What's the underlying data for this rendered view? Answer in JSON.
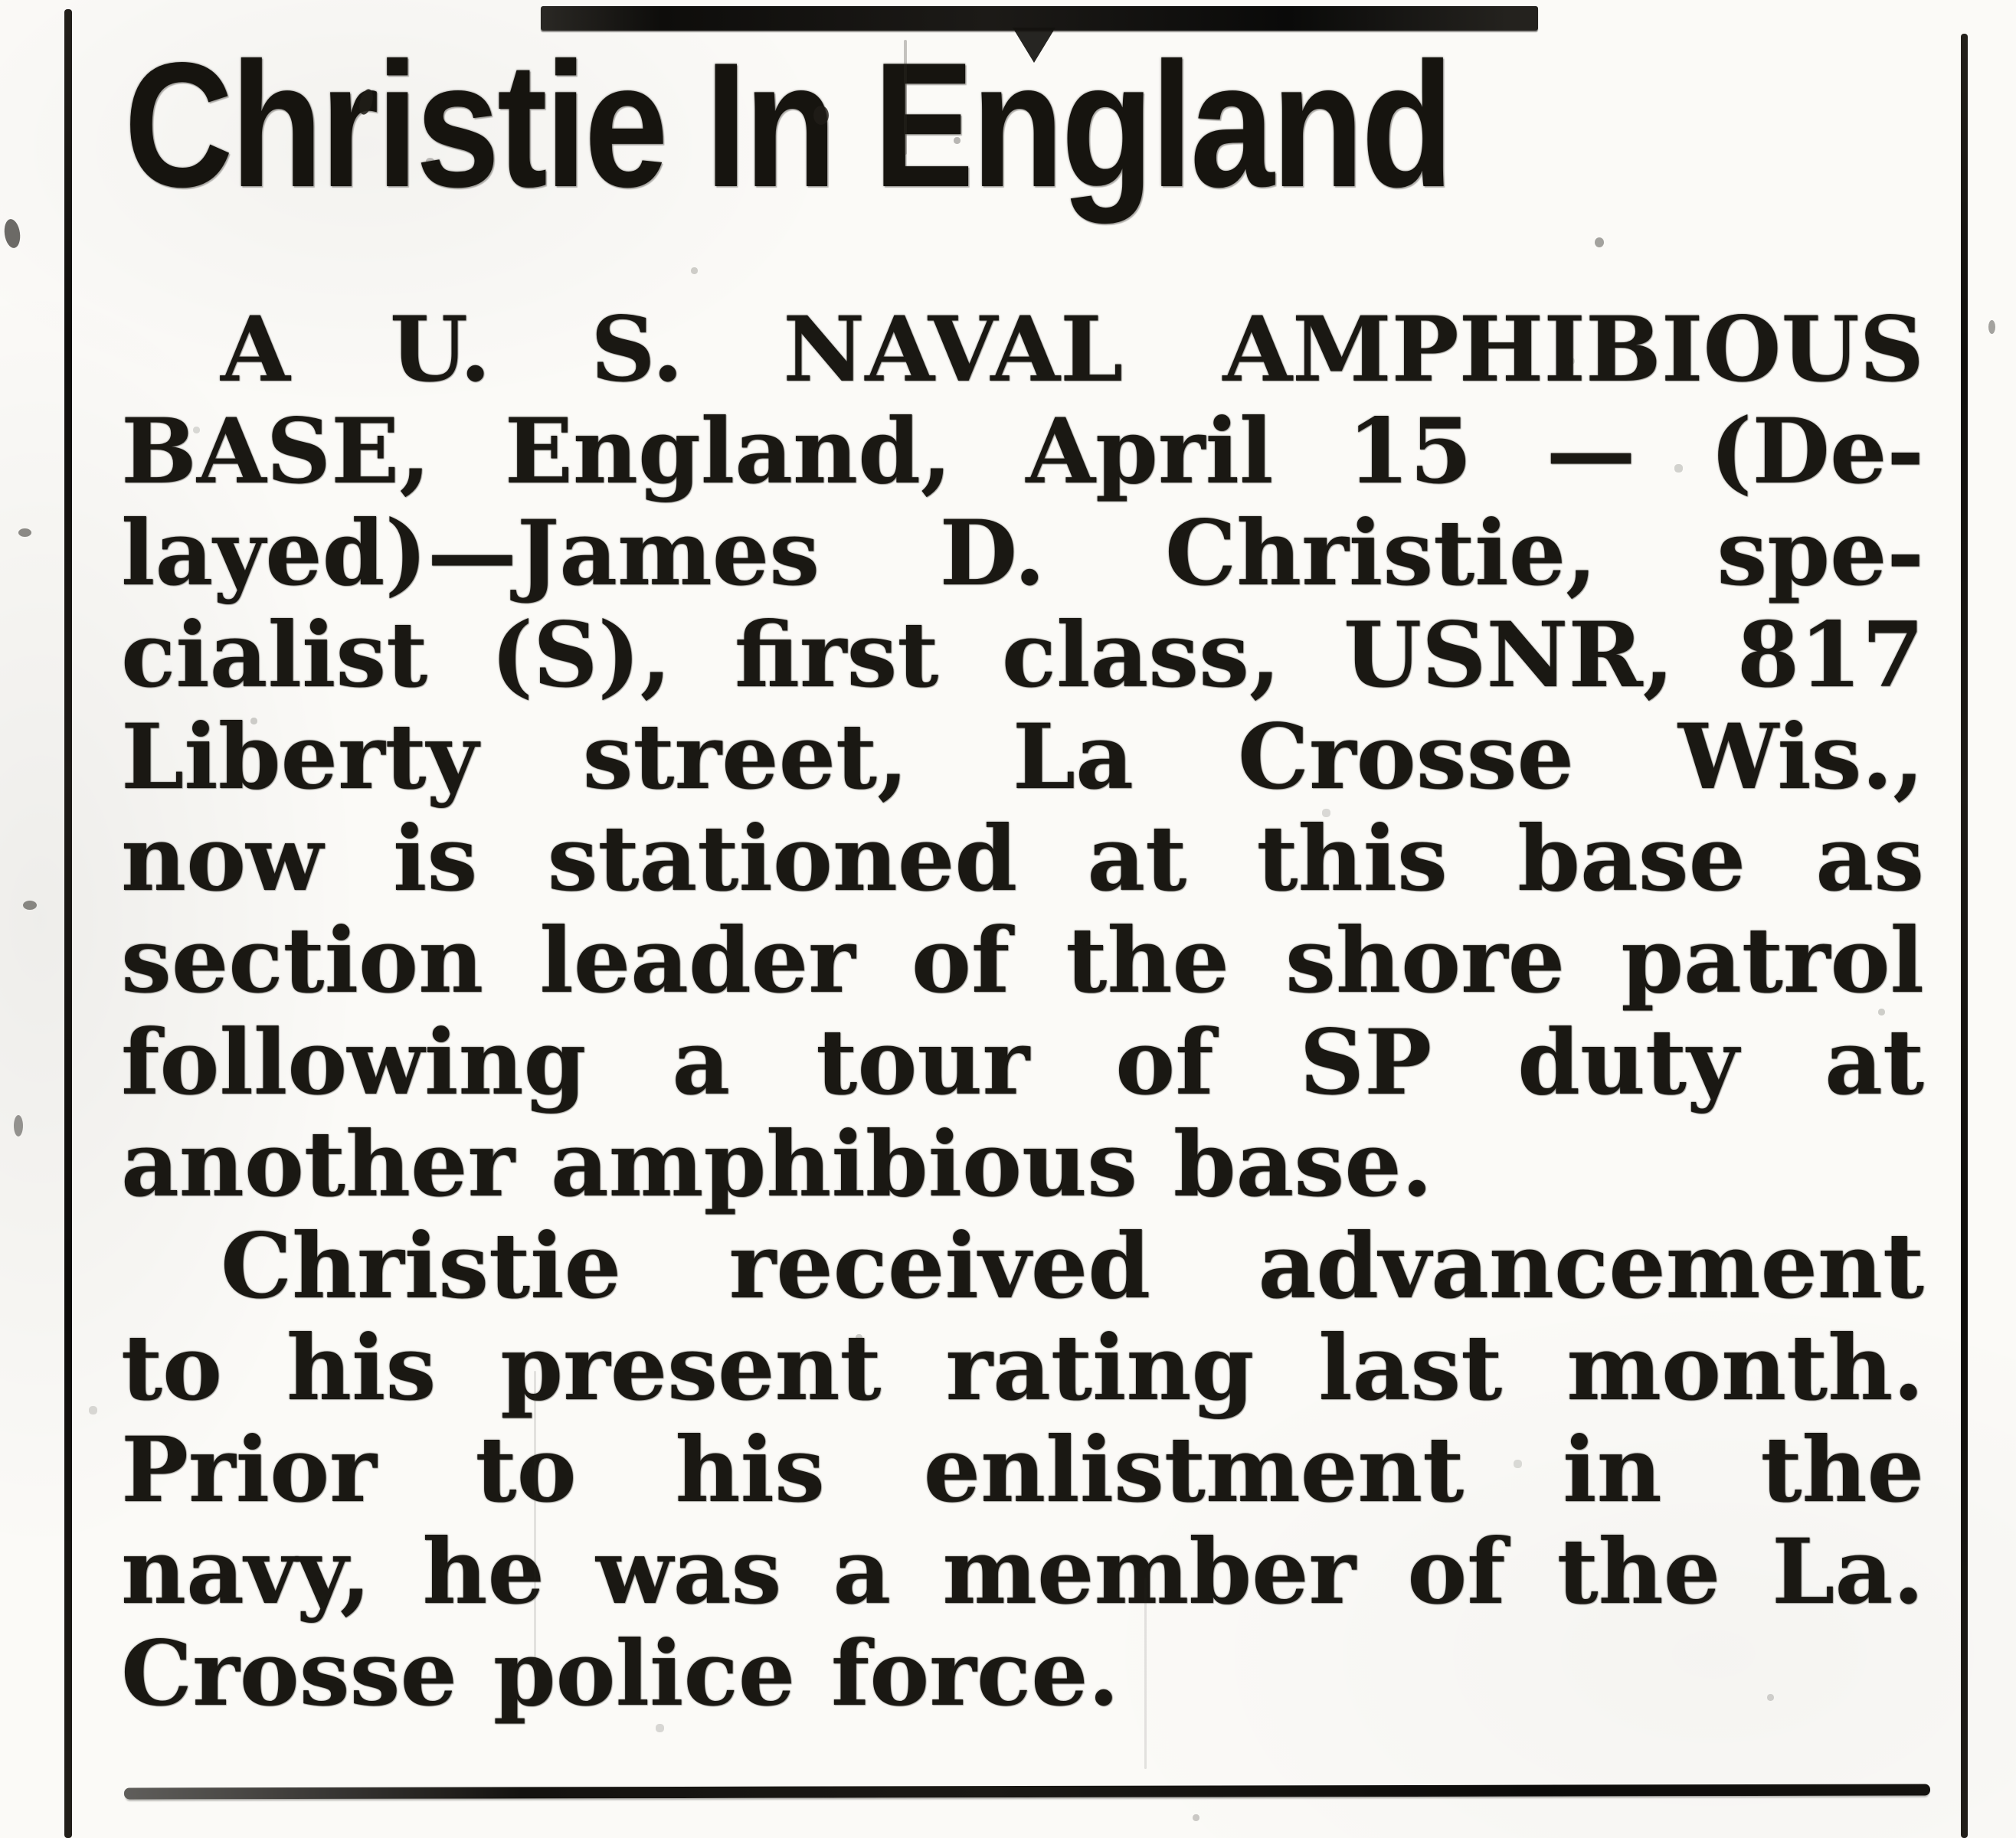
{
  "article": {
    "headline": "Christie In England",
    "lines": [
      {
        "text": "A U. S. NAVAL AMPHIBIOUS"
      },
      {
        "text": "BASE, England, April 15 — (De-"
      },
      {
        "text": "layed)—James D. Christie, spe-"
      },
      {
        "text": "cialist (S), first class, USNR, 817"
      },
      {
        "text": "Liberty street, La Crosse Wis.,"
      },
      {
        "text": "now is stationed at this base as"
      },
      {
        "text": "section leader of the shore patrol"
      },
      {
        "text": "following a tour of SP duty at"
      },
      {
        "text": "another amphibious base."
      },
      {
        "text": "Christie received advancement"
      },
      {
        "text": "to his present rating last month."
      },
      {
        "text": "Prior to his enlistment in the"
      },
      {
        "text": "navy, he was a member of the La."
      },
      {
        "text": "Crosse police force."
      }
    ]
  },
  "colors": {
    "ink": "#1a1813",
    "paper": "#fbfaf7"
  }
}
